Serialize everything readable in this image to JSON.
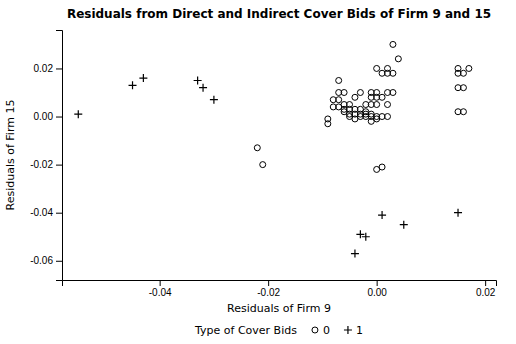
{
  "chart_data": {
    "type": "scatter",
    "title": "Residuals from Direct and Indirect Cover Bids of Firm 9 and 15",
    "x_label": "Residuals of Firm 9",
    "y_label": "Residuals of Firm 15",
    "legend_title": "Type of Cover Bids",
    "legend": "bottom",
    "grid": false,
    "xlim": [
      -0.058,
      0.022
    ],
    "ylim": [
      -0.068,
      0.036
    ],
    "xticks": [
      -0.04,
      -0.02,
      {
        "value": 0.0,
        "label": "0.00"
      },
      0.02
    ],
    "yticks": [
      -0.06,
      -0.04,
      -0.02,
      {
        "value": 0.0,
        "label": "0.00"
      },
      0.02
    ],
    "series": [
      {
        "name": "0",
        "color": "#000000",
        "marker": "circle",
        "x": [
          -0.022,
          -0.021,
          -0.009,
          -0.009,
          -0.008,
          -0.008,
          -0.007,
          -0.007,
          -0.007,
          -0.007,
          -0.006,
          -0.006,
          -0.006,
          -0.006,
          -0.005,
          -0.005,
          -0.005,
          -0.005,
          -0.004,
          -0.004,
          -0.004,
          -0.004,
          -0.003,
          -0.003,
          -0.003,
          -0.003,
          -0.002,
          -0.002,
          -0.002,
          -0.002,
          -0.001,
          -0.001,
          -0.001,
          -0.001,
          -0.001,
          -0.001,
          0.0,
          0.0,
          0.0,
          0.0,
          0.0,
          0.0,
          0.0,
          0.001,
          0.001,
          0.001,
          0.001,
          0.002,
          0.002,
          0.002,
          0.002,
          0.002,
          0.003,
          0.003,
          0.003,
          0.004,
          0.015,
          0.015,
          0.015,
          0.015,
          0.016,
          0.016,
          0.016,
          0.017
        ],
        "values": [
          -0.013,
          -0.02,
          -0.003,
          -0.001,
          0.004,
          0.007,
          0.004,
          0.007,
          0.01,
          0.015,
          0.002,
          0.003,
          0.005,
          0.01,
          0.0,
          0.001,
          0.003,
          0.005,
          -0.001,
          0.001,
          0.003,
          0.008,
          0.0,
          0.001,
          0.003,
          0.01,
          0.0,
          0.001,
          0.002,
          0.005,
          -0.002,
          0.0,
          0.001,
          0.005,
          0.008,
          0.01,
          -0.022,
          -0.001,
          0.0,
          0.005,
          0.008,
          0.01,
          0.02,
          -0.021,
          0.0,
          0.008,
          0.018,
          0.0,
          0.005,
          0.01,
          0.018,
          0.02,
          0.01,
          0.018,
          0.03,
          0.024,
          0.002,
          0.012,
          0.018,
          0.02,
          0.002,
          0.012,
          0.018,
          0.02
        ]
      },
      {
        "name": "1",
        "color": "#000000",
        "marker": "plus",
        "x": [
          -0.055,
          -0.045,
          -0.043,
          -0.033,
          -0.032,
          -0.03,
          -0.004,
          -0.003,
          -0.002,
          0.001,
          0.005,
          0.015
        ],
        "values": [
          0.001,
          0.013,
          0.016,
          0.015,
          0.012,
          0.007,
          -0.057,
          -0.049,
          -0.05,
          -0.041,
          -0.045,
          -0.04
        ]
      }
    ]
  }
}
